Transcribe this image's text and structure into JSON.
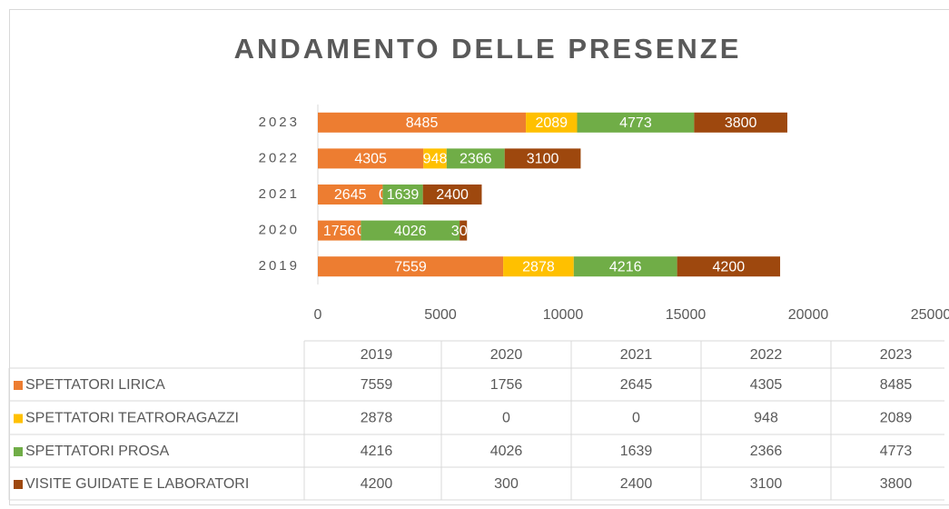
{
  "chart_data": {
    "type": "bar",
    "orientation": "horizontal",
    "stacked": true,
    "title": "ANDAMENTO DELLE PRESENZE",
    "categories": [
      "2019",
      "2020",
      "2021",
      "2022",
      "2023"
    ],
    "series": [
      {
        "name": "SPETTATORI LIRICA",
        "color": "#ed7d31",
        "values": [
          7559,
          1756,
          2645,
          4305,
          8485
        ]
      },
      {
        "name": "SPETTATORI TEATRORAGAZZI",
        "color": "#ffc000",
        "values": [
          2878,
          0,
          0,
          948,
          2089
        ]
      },
      {
        "name": "SPETTATORI PROSA",
        "color": "#70ad47",
        "values": [
          4216,
          4026,
          1639,
          2366,
          4773
        ]
      },
      {
        "name": "VISITE GUIDATE E LABORATORI",
        "color": "#9e480e",
        "values": [
          4200,
          300,
          2400,
          3100,
          3800
        ]
      }
    ],
    "xlim": [
      0,
      25000
    ],
    "xticks": [
      0,
      5000,
      10000,
      15000,
      20000,
      25000
    ],
    "grid": false,
    "data_table": true
  }
}
